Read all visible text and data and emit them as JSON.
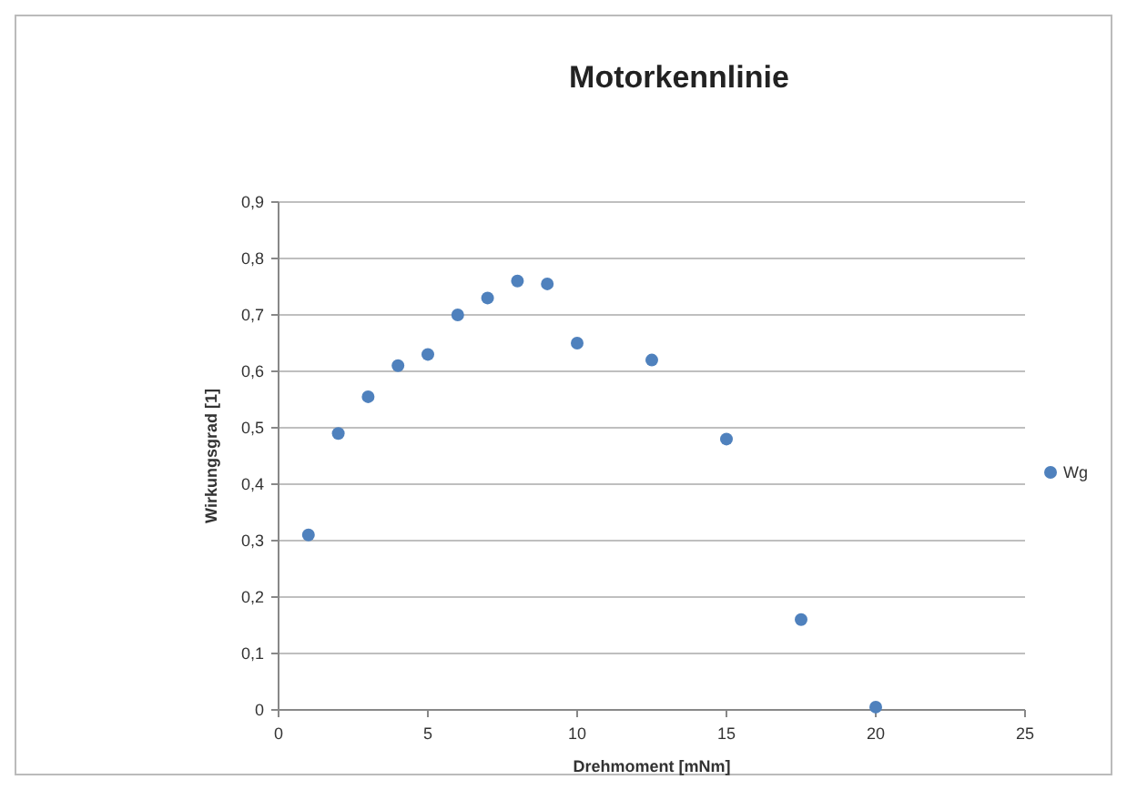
{
  "chart_data": {
    "type": "scatter",
    "title": "Motorkennlinie",
    "xlabel": "Drehmoment [mNm]",
    "ylabel": "Wirkungsgrad [1]",
    "x": [
      1,
      2,
      3,
      4,
      5,
      6,
      7,
      8,
      9,
      10,
      12.5,
      15,
      17.5,
      20
    ],
    "series": [
      {
        "name": "Wg",
        "color": "#4f81bd",
        "values": [
          0.31,
          0.49,
          0.555,
          0.61,
          0.63,
          0.7,
          0.73,
          0.76,
          0.755,
          0.65,
          0.62,
          0.48,
          0.16,
          0.005
        ]
      }
    ],
    "xlim": [
      0,
      25
    ],
    "xticks": [
      0,
      5,
      10,
      15,
      20,
      25
    ],
    "ylim": [
      0,
      0.9
    ],
    "yticks": [
      0,
      {
        "value": 0.1,
        "label": "0,1"
      },
      {
        "value": 0.2,
        "label": "0,2"
      },
      {
        "value": 0.3,
        "label": "0,3"
      },
      {
        "value": 0.4,
        "label": "0,4"
      },
      {
        "value": 0.5,
        "label": "0,5"
      },
      {
        "value": 0.6,
        "label": "0,6"
      },
      {
        "value": 0.7,
        "label": "0,7"
      },
      {
        "value": 0.8,
        "label": "0,8"
      },
      {
        "value": 0.9,
        "label": "0,9"
      }
    ],
    "grid": "y",
    "legend": "right",
    "marker": "circle"
  }
}
